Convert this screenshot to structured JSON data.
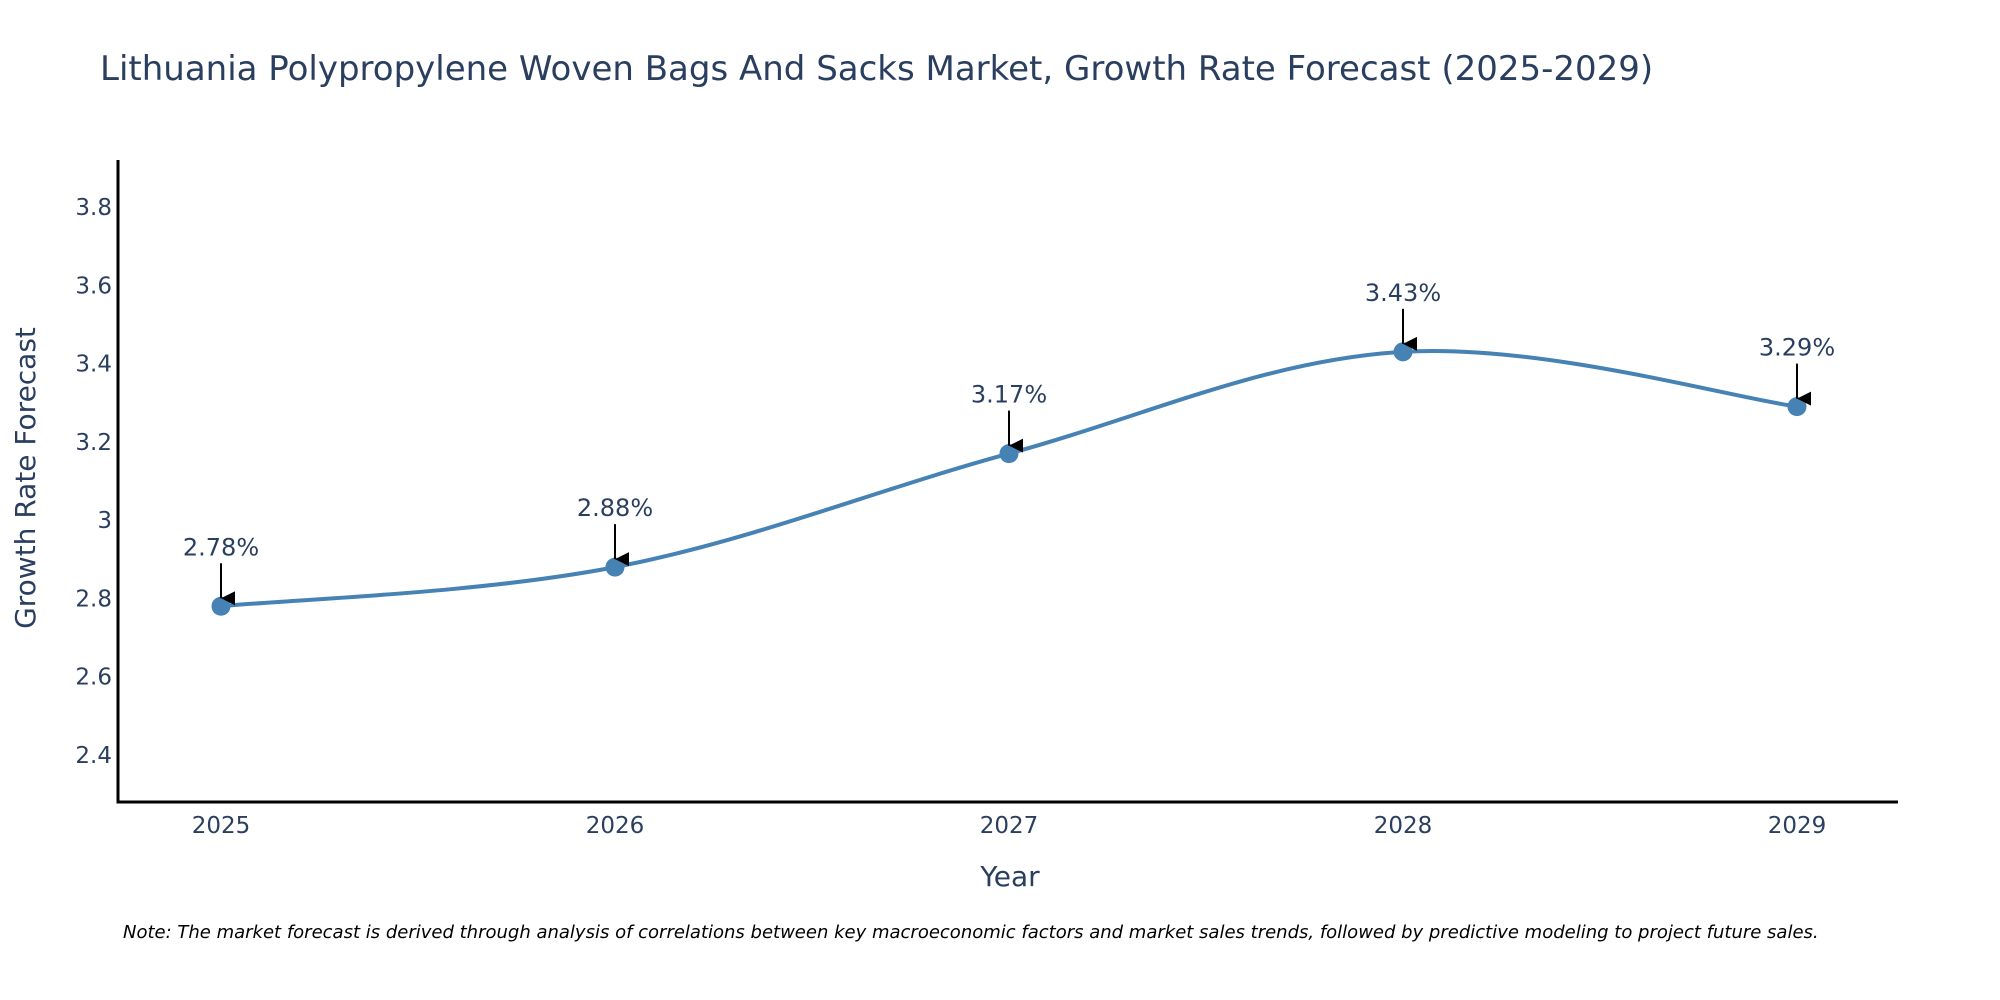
{
  "chart_data": {
    "type": "line",
    "title": "Lithuania Polypropylene Woven Bags And Sacks Market, Growth Rate Forecast (2025-2029)",
    "xlabel": "Year",
    "ylabel": "Growth Rate Forecast",
    "categories": [
      "2025",
      "2026",
      "2027",
      "2028",
      "2029"
    ],
    "series": [
      {
        "name": "Growth Rate Forecast",
        "values": [
          2.78,
          2.88,
          3.17,
          3.43,
          3.29
        ],
        "labels": [
          "2.78%",
          "2.88%",
          "3.17%",
          "3.43%",
          "3.29%"
        ],
        "color": "#4682b4"
      }
    ],
    "ylim": [
      2.28,
      3.92
    ],
    "yticks": [
      2.4,
      2.6,
      2.8,
      3,
      3.2,
      3.4,
      3.6,
      3.8
    ],
    "ytick_labels": [
      "2.4",
      "2.6",
      "2.8",
      "3",
      "3.2",
      "3.4",
      "3.6",
      "3.8"
    ],
    "grid": false,
    "line_shape": "spline",
    "note": "Note: The market forecast is derived through analysis of correlations between key macroeconomic factors and market sales trends, followed by predictive modeling to project future sales."
  },
  "colors": {
    "line": "#4682b4",
    "axis": "#000000",
    "text": "#2a3f5f",
    "annotation_arrow": "#000000",
    "background": "#ffffff"
  }
}
